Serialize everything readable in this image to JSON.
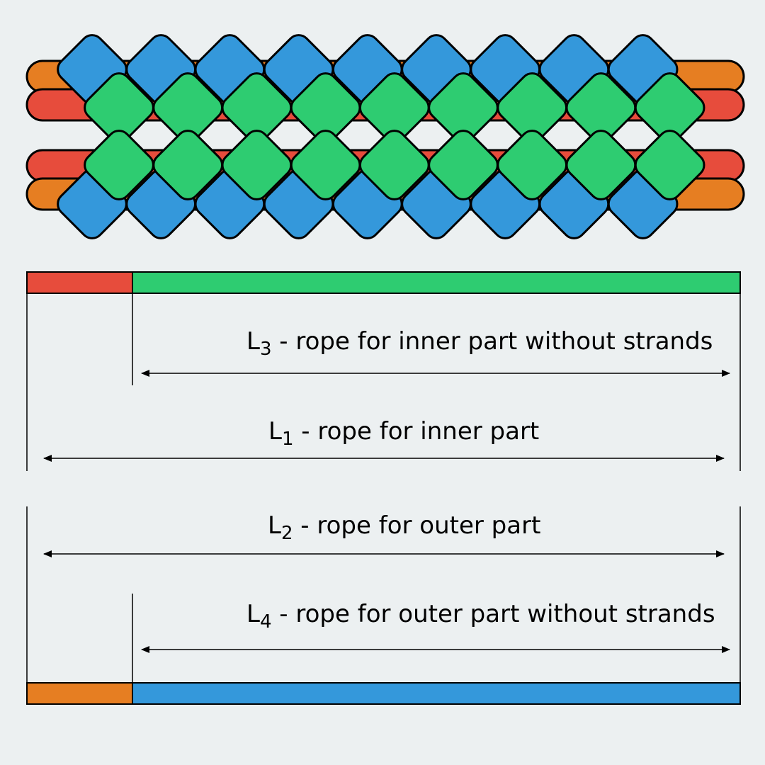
{
  "colors": {
    "background": "#ecf0f1",
    "outer_strand": "#e67e22",
    "inner_strand": "#e74c3c",
    "outer_knot": "#3498db",
    "inner_knot": "#2ecc71",
    "outline": "#000000"
  },
  "braid": {
    "outer_knot_count": 9,
    "inner_knot_count": 9
  },
  "inner_bar": {
    "strand_color": "#e74c3c",
    "body_color": "#2ecc71"
  },
  "outer_bar": {
    "strand_color": "#e67e22",
    "body_color": "#3498db"
  },
  "labels": {
    "l3": {
      "letter": "L",
      "sub": "3",
      "text": " - rope for inner part without strands"
    },
    "l1": {
      "letter": "L",
      "sub": "1",
      "text": " - rope for inner part"
    },
    "l2": {
      "letter": "L",
      "sub": "2",
      "text": " - rope for outer part"
    },
    "l4": {
      "letter": "L",
      "sub": "4",
      "text": " - rope for outer part without strands"
    }
  }
}
